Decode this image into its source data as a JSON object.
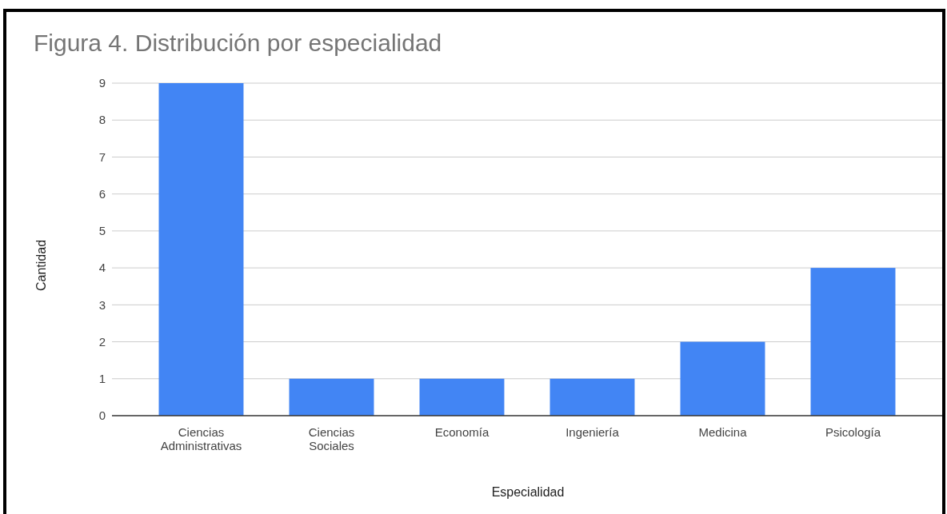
{
  "chart_data": {
    "type": "bar",
    "title": "Figura 4. Distribución por especialidad",
    "xlabel": "Especialidad",
    "ylabel": "Cantidad",
    "categories": [
      "Ciencias Administrativas",
      "Ciencias Sociales",
      "Economía",
      "Ingeniería",
      "Medicina",
      "Psicología"
    ],
    "values": [
      9,
      1,
      1,
      1,
      2,
      4
    ],
    "color": "#4285f4",
    "ylim": [
      0,
      9
    ],
    "yticks": [
      0,
      1,
      2,
      3,
      4,
      5,
      6,
      7,
      8,
      9
    ],
    "grid": "y"
  }
}
